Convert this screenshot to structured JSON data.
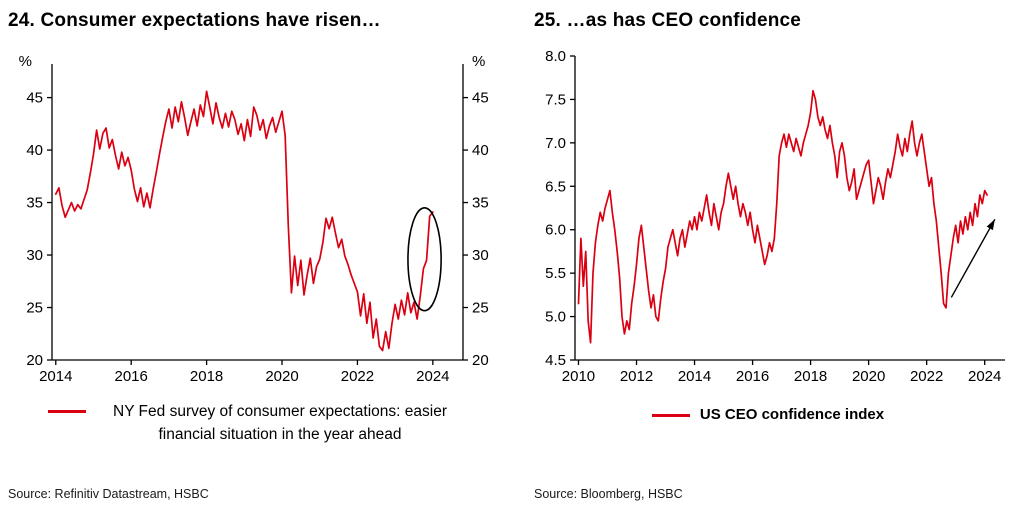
{
  "chart_data": [
    {
      "type": "line",
      "title": "24. Consumer expectations have risen…",
      "unit_label_left": "%",
      "unit_label_right": "%",
      "xlabel": "",
      "ylabel": "%",
      "ylim": [
        20,
        48.2
      ],
      "yticks": [
        20,
        25,
        30,
        35,
        40,
        45
      ],
      "ytick_decimals": 0,
      "xlim": [
        2013.9,
        2024.8
      ],
      "xticks": [
        2014,
        2016,
        2018,
        2020,
        2022,
        2024
      ],
      "x_start": 2014,
      "points_per_year": 12,
      "grid": false,
      "legend_position": "bottom",
      "legend": "NY Fed survey of consumer expectations: easier financial situation in the year ahead",
      "source": "Source: Refinitiv Datastream, HSBC",
      "series": [
        {
          "name": "NY Fed survey of consumer expectations: easier financial situation in the year ahead",
          "color": "#db0011",
          "values": [
            35.8,
            36.4,
            34.7,
            33.6,
            34.3,
            35.0,
            34.2,
            34.8,
            34.4,
            35.3,
            36.2,
            37.8,
            39.6,
            41.9,
            40.1,
            41.6,
            42.1,
            40.2,
            41.0,
            39.5,
            38.2,
            39.8,
            38.5,
            39.3,
            38.1,
            36.3,
            35.1,
            36.4,
            34.6,
            35.9,
            34.5,
            36.3,
            37.9,
            39.6,
            41.2,
            42.7,
            43.9,
            42.1,
            44.1,
            42.7,
            44.6,
            43.1,
            41.4,
            42.7,
            43.9,
            42.3,
            44.3,
            43.2,
            45.6,
            44.1,
            42.5,
            44.5,
            43.1,
            42.1,
            43.5,
            42.2,
            43.7,
            42.9,
            41.5,
            42.5,
            40.9,
            42.9,
            41.3,
            44.1,
            43.3,
            41.9,
            42.9,
            41.1,
            42.3,
            43.1,
            41.7,
            42.7,
            43.7,
            41.4,
            32.8,
            26.4,
            29.9,
            27.1,
            29.5,
            26.2,
            28.1,
            29.7,
            27.3,
            28.9,
            29.6,
            31.2,
            33.5,
            32.5,
            33.6,
            32.1,
            30.7,
            31.5,
            29.9,
            29.1,
            28.1,
            27.3,
            26.5,
            24.2,
            26.3,
            23.5,
            25.5,
            22.1,
            23.9,
            21.3,
            20.9,
            22.7,
            21.1,
            23.5,
            25.3,
            23.9,
            25.7,
            24.3,
            26.4,
            24.5,
            25.5,
            23.9,
            26.1,
            28.7,
            29.5,
            33.7,
            34.1
          ]
        }
      ],
      "annotations": [
        {
          "type": "ellipse",
          "cx": 2023.78,
          "cy": 29.6,
          "rx": 0.44,
          "ry": 4.9,
          "color": "#000000"
        }
      ]
    },
    {
      "type": "line",
      "title": "25. …as has CEO confidence",
      "unit_label_left": "",
      "unit_label_right": "",
      "xlabel": "",
      "ylabel": "",
      "ylim": [
        4.5,
        8.0
      ],
      "yticks": [
        4.5,
        5.0,
        5.5,
        6.0,
        6.5,
        7.0,
        7.5,
        8.0
      ],
      "ytick_decimals": 1,
      "xlim": [
        2009.88,
        2024.7
      ],
      "xticks": [
        2010,
        2012,
        2014,
        2016,
        2018,
        2020,
        2022,
        2024
      ],
      "x_start": 2010,
      "points_per_year": 12,
      "grid": false,
      "legend_position": "bottom",
      "legend": "US CEO confidence index",
      "source": "Source: Bloomberg, HSBC",
      "series": [
        {
          "name": "US CEO confidence index",
          "color": "#db0011",
          "values": [
            5.15,
            5.9,
            5.35,
            5.75,
            4.95,
            4.7,
            5.5,
            5.85,
            6.05,
            6.2,
            6.1,
            6.25,
            6.35,
            6.45,
            6.2,
            6.0,
            5.75,
            5.45,
            5.0,
            4.8,
            4.95,
            4.85,
            5.15,
            5.35,
            5.6,
            5.9,
            6.05,
            5.8,
            5.55,
            5.3,
            5.1,
            5.25,
            5.0,
            4.95,
            5.2,
            5.4,
            5.55,
            5.8,
            5.9,
            6.0,
            5.85,
            5.7,
            5.9,
            6.0,
            5.8,
            5.95,
            6.1,
            6.0,
            6.15,
            6.0,
            6.2,
            6.1,
            6.25,
            6.4,
            6.2,
            6.05,
            6.3,
            6.15,
            6.0,
            6.2,
            6.3,
            6.5,
            6.65,
            6.5,
            6.35,
            6.5,
            6.3,
            6.15,
            6.3,
            6.2,
            6.05,
            6.2,
            6.0,
            5.85,
            6.05,
            5.9,
            5.75,
            5.6,
            5.7,
            5.85,
            5.75,
            5.9,
            6.3,
            6.85,
            7.0,
            7.1,
            6.95,
            7.1,
            7.0,
            6.9,
            7.05,
            6.95,
            6.85,
            7.0,
            7.1,
            7.2,
            7.35,
            7.6,
            7.5,
            7.3,
            7.2,
            7.3,
            7.15,
            7.05,
            7.2,
            7.0,
            6.85,
            6.6,
            6.9,
            7.0,
            6.85,
            6.6,
            6.45,
            6.55,
            6.7,
            6.35,
            6.45,
            6.55,
            6.65,
            6.75,
            6.8,
            6.55,
            6.3,
            6.45,
            6.6,
            6.5,
            6.35,
            6.55,
            6.7,
            6.6,
            6.75,
            6.9,
            7.1,
            6.95,
            6.85,
            7.05,
            6.9,
            7.1,
            7.25,
            7.0,
            6.85,
            7.0,
            7.1,
            6.9,
            6.7,
            6.5,
            6.6,
            6.3,
            6.1,
            5.8,
            5.5,
            5.15,
            5.1,
            5.5,
            5.7,
            5.9,
            6.05,
            5.85,
            6.1,
            5.95,
            6.15,
            6.0,
            6.2,
            6.05,
            6.3,
            6.15,
            6.4,
            6.3,
            6.45,
            6.4
          ]
        }
      ],
      "annotations": [
        {
          "type": "arrow",
          "x1": 2022.85,
          "y1": 5.22,
          "x2": 2024.35,
          "y2": 6.12,
          "color": "#000000"
        }
      ]
    }
  ]
}
